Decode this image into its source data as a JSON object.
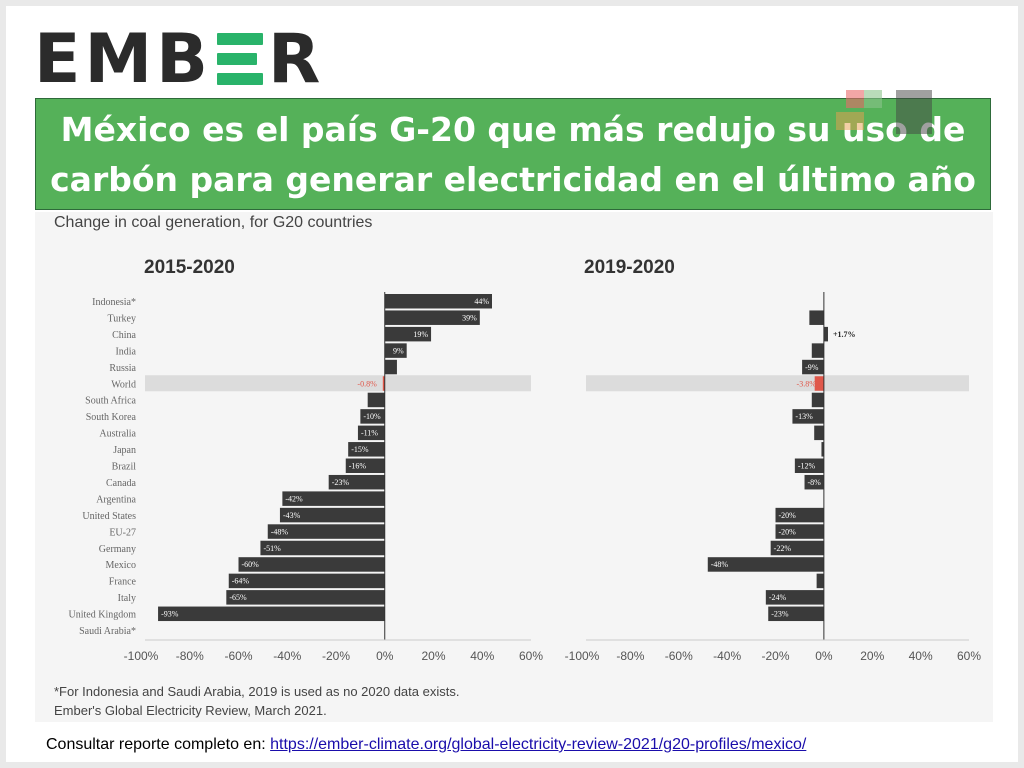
{
  "logo": "EMBER",
  "banner": {
    "line1": "México es el país G-20 que más redujo su uso de",
    "line2": "carbón para generar electricidad en el último año"
  },
  "watermark": "de",
  "subtitle": "Change in coal generation, for G20 countries",
  "notes": [
    "*For Indonesia and Saudi Arabia, 2019 is used as no 2020 data exists.",
    "Ember's Global Electricity Review, March 2021."
  ],
  "footer": {
    "text": "Consultar  reporte completo en: ",
    "link": "https://ember-climate.org/global-electricity-review-2021/g20-profiles/mexico/"
  },
  "colors": {
    "bar": "#3a3a3a",
    "world": "#e0574a",
    "highlight": "#dcdcdc",
    "banner": "#55b159"
  },
  "chart_data": [
    {
      "type": "bar",
      "orientation": "horizontal",
      "title": "2015-2020",
      "xlim": [
        -100,
        60
      ],
      "xticks": [
        "-100%",
        "-80%",
        "-60%",
        "-40%",
        "-20%",
        "0%",
        "20%",
        "40%",
        "60%"
      ],
      "categories": [
        "Indonesia*",
        "Turkey",
        "China",
        "India",
        "Russia",
        "World",
        "South Africa",
        "South Korea",
        "Australia",
        "Japan",
        "Brazil",
        "Canada",
        "Argentina",
        "United States",
        "EU-27",
        "Germany",
        "Mexico",
        "France",
        "Italy",
        "United Kingdom",
        "Saudi Arabia*"
      ],
      "values": [
        44,
        39,
        19,
        9,
        5,
        -0.8,
        -7,
        -10,
        -11,
        -15,
        -16,
        -23,
        -42,
        -43,
        -48,
        -51,
        -60,
        -64,
        -65,
        -93,
        null
      ],
      "labels": [
        "44%",
        "39%",
        "19%",
        "9%",
        "",
        "-0.8%",
        "",
        "-10%",
        "-11%",
        "-15%",
        "-16%",
        "-23%",
        "-42%",
        "-43%",
        "-48%",
        "-51%",
        "-60%",
        "-64%",
        "-65%",
        "-93%",
        ""
      ]
    },
    {
      "type": "bar",
      "orientation": "horizontal",
      "title": "2019-2020",
      "xlim": [
        -100,
        60
      ],
      "xticks": [
        "-100%",
        "-80%",
        "-60%",
        "-40%",
        "-20%",
        "0%",
        "20%",
        "40%",
        "60%"
      ],
      "values": [
        null,
        -6,
        1.7,
        -5,
        -9,
        -3.8,
        -5,
        -13,
        -4,
        -1,
        -12,
        -8,
        null,
        -20,
        -20,
        -22,
        -48,
        -3,
        -24,
        -23,
        null
      ],
      "labels": [
        "",
        "",
        "+1.7%",
        "",
        "-9%",
        "-3.8%",
        "",
        "-13%",
        "",
        "",
        "-12%",
        "-8%",
        "",
        "-20%",
        "-20%",
        "-22%",
        "-48%",
        "",
        "-24%",
        "-23%",
        ""
      ]
    }
  ]
}
